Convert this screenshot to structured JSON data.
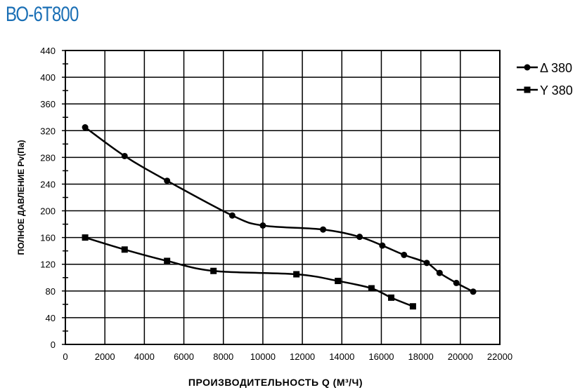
{
  "chart_data": {
    "type": "line",
    "title": "ВО-6Т800",
    "xlabel": "ПРОИЗВОДИТЕЛЬНОСТЬ  Q  (М³/Ч)",
    "ylabel": "ПОЛНОЕ ДАВЛЕНИЕ   Pv(Па)",
    "xlim": [
      0,
      22000
    ],
    "ylim": [
      0,
      440
    ],
    "xticks": [
      0,
      2000,
      4000,
      6000,
      8000,
      10000,
      12000,
      14000,
      16000,
      18000,
      20000,
      22000
    ],
    "yticks": [
      0,
      40,
      80,
      120,
      160,
      200,
      240,
      280,
      320,
      360,
      400,
      440
    ],
    "grid": true,
    "legend": "right",
    "series": [
      {
        "name": "Δ 380",
        "marker": "circle",
        "color": "#000000",
        "x": [
          1000,
          3000,
          5150,
          8450,
          10000,
          13050,
          14900,
          16050,
          17150,
          18300,
          18950,
          19800,
          20650
        ],
        "y": [
          325,
          282,
          245,
          193,
          178,
          172,
          161,
          148,
          134,
          122,
          107,
          92,
          79
        ]
      },
      {
        "name": "Y 380",
        "marker": "square",
        "color": "#000000",
        "x": [
          1000,
          3000,
          5150,
          7500,
          11700,
          13800,
          15500,
          16500,
          17600
        ],
        "y": [
          160,
          142,
          125,
          110,
          105,
          95,
          84,
          70,
          57
        ]
      }
    ]
  }
}
